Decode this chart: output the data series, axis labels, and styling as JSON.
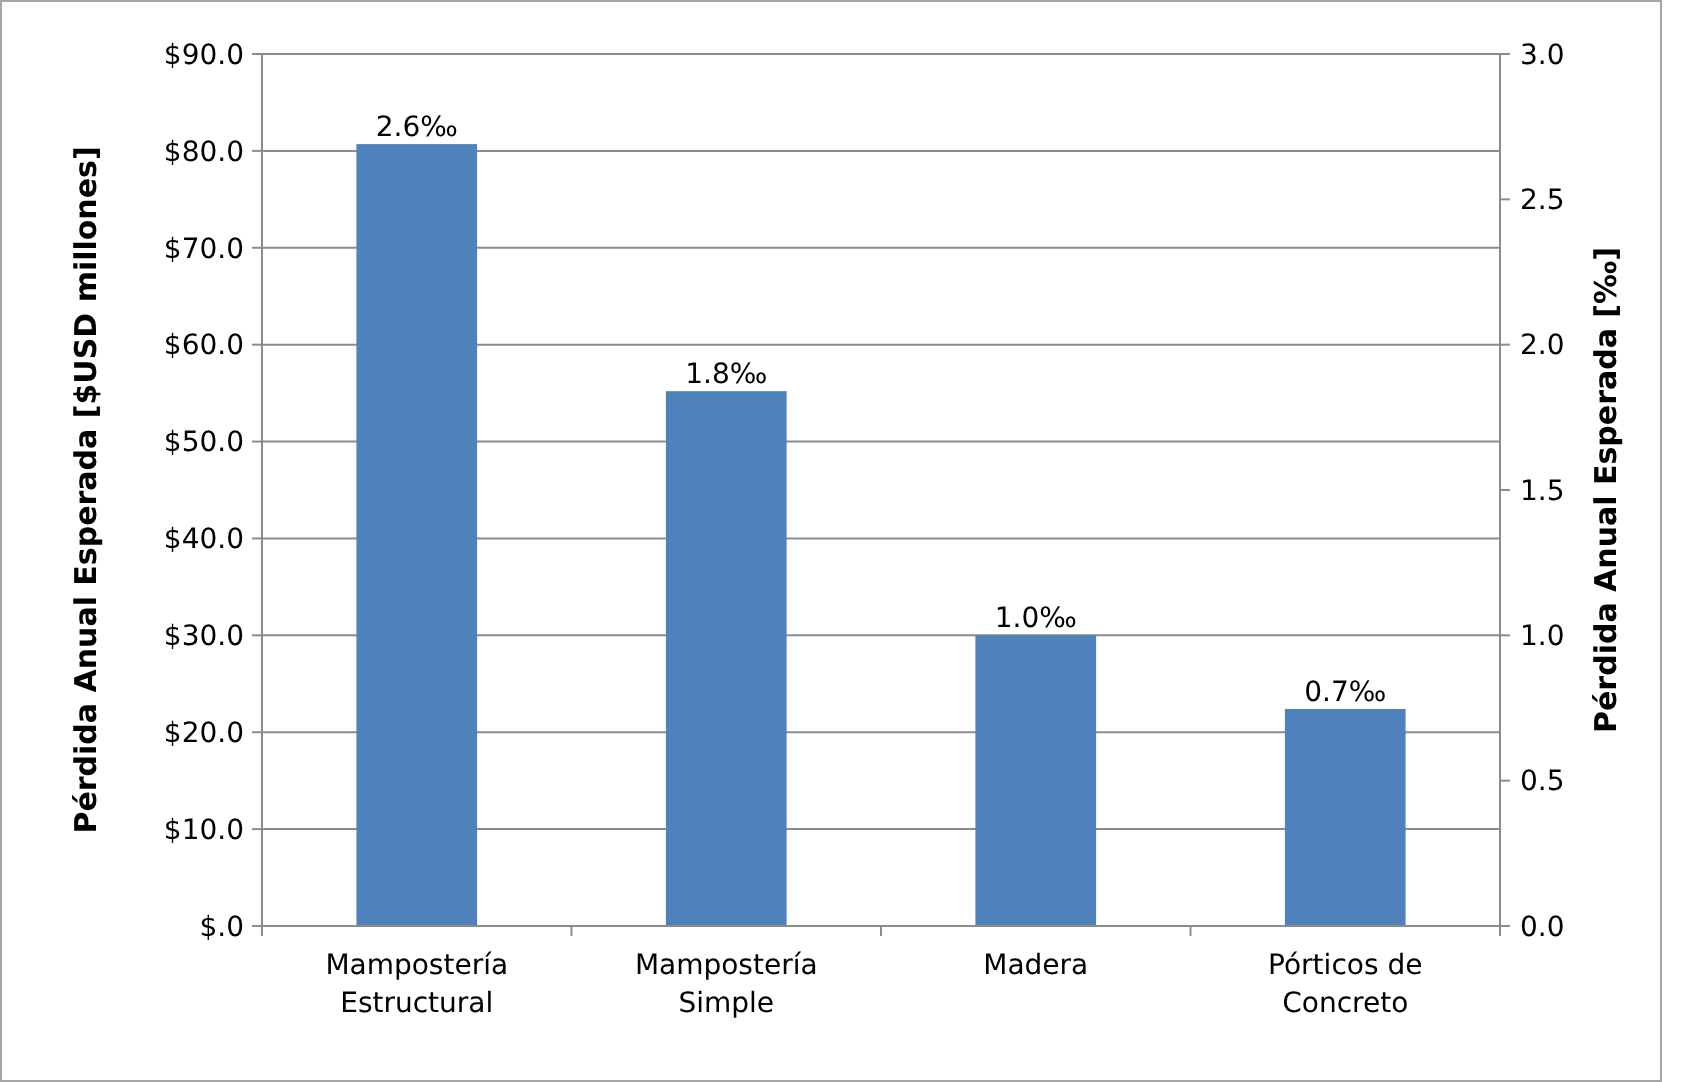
{
  "chart_data": {
    "type": "bar",
    "categories": [
      "Mampostería Estructural",
      "Mampostería Simple",
      "Madera",
      "Pórticos de Concreto"
    ],
    "series": [
      {
        "color": "#4f81bd",
        "values": [
          80.7,
          55.2,
          30.0,
          22.4
        ]
      }
    ],
    "annotations": [
      {
        "text": "2.6‰",
        "x": "Mampostería Estructural",
        "y": 80.7
      },
      {
        "text": "1.8‰",
        "x": "Mampostería Simple",
        "y": 55.2
      },
      {
        "text": "1.0‰",
        "x": "Madera",
        "y": 30.0
      },
      {
        "text": "0.7‰",
        "x": "Pórticos de Concreto",
        "y": 22.4
      }
    ],
    "ylabel": "Pérdida Anual Esperada [$USD millones]",
    "y2label": "Pérdida Anual Esperada [‰]",
    "ylim": [
      0,
      90
    ],
    "yticks": [
      {
        "value": 0,
        "label": "$.0"
      },
      {
        "value": 10,
        "label": "$10.0"
      },
      {
        "value": 20,
        "label": "$20.0"
      },
      {
        "value": 30,
        "label": "$30.0"
      },
      {
        "value": 40,
        "label": "$40.0"
      },
      {
        "value": 50,
        "label": "$50.0"
      },
      {
        "value": 60,
        "label": "$60.0"
      },
      {
        "value": 70,
        "label": "$70.0"
      },
      {
        "value": 80,
        "label": "$80.0"
      },
      {
        "value": 90,
        "label": "$90.0"
      }
    ],
    "y2lim": [
      0,
      3
    ],
    "y2ticks": [
      {
        "value": 0,
        "label": "0.0"
      },
      {
        "value": 0.5,
        "label": "0.5"
      },
      {
        "value": 1,
        "label": "1.0"
      },
      {
        "value": 1.5,
        "label": "1.5"
      },
      {
        "value": 2,
        "label": "2.0"
      },
      {
        "value": 2.5,
        "label": "2.5"
      },
      {
        "value": 3,
        "label": "3.0"
      }
    ],
    "grid": "y"
  }
}
